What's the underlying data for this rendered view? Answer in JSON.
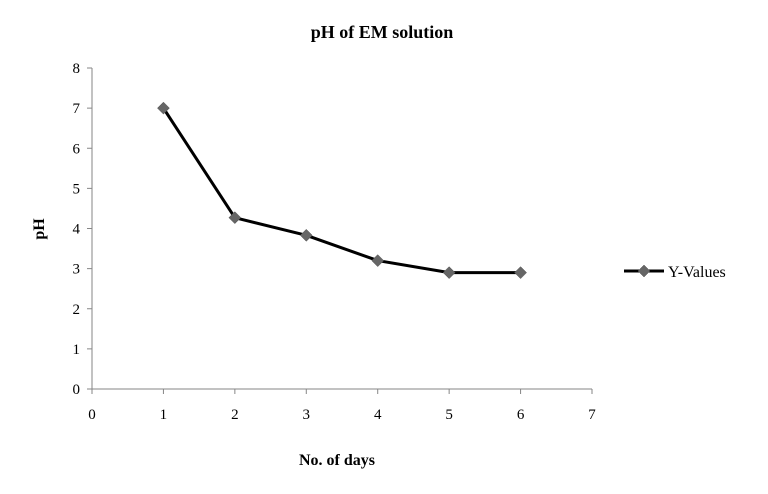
{
  "chart_data": {
    "type": "scatter",
    "title": "pH of EM solution",
    "xlabel": "No. of days",
    "ylabel": "pH",
    "xlim": [
      0,
      7
    ],
    "ylim": [
      0,
      8
    ],
    "x_ticks": [
      "0",
      "1",
      "2",
      "3",
      "4",
      "5",
      "6",
      "7"
    ],
    "y_ticks": [
      "0",
      "1",
      "2",
      "3",
      "4",
      "5",
      "6",
      "7",
      "8"
    ],
    "grid": false,
    "legend_position": "right",
    "series": [
      {
        "name": "Y-Values",
        "color": "#000000",
        "marker_color": "#666666",
        "marker": "diamond",
        "x": [
          1,
          2,
          3,
          4,
          5,
          6
        ],
        "y": [
          7.0,
          4.27,
          3.83,
          3.2,
          2.9,
          2.9
        ]
      }
    ]
  }
}
